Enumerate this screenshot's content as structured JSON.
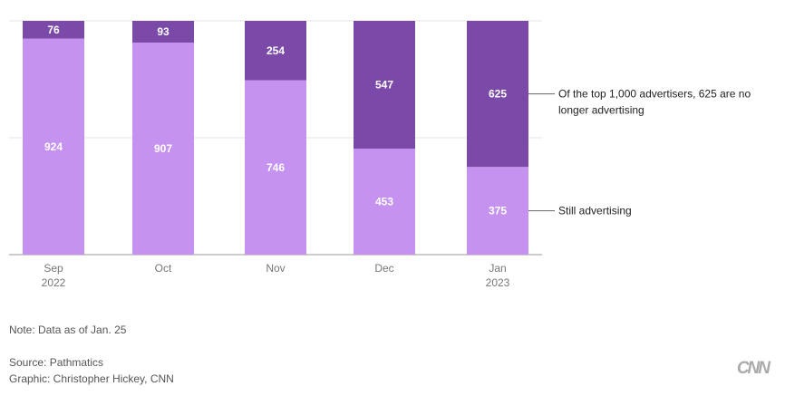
{
  "chart_data": {
    "type": "bar",
    "stacked": true,
    "categories": [
      "Sep\n2022",
      "Oct",
      "Nov",
      "Dec",
      "Jan\n2023"
    ],
    "series": [
      {
        "name": "Still advertising",
        "values": [
          924,
          907,
          746,
          453,
          375
        ],
        "color": "#c592f0"
      },
      {
        "name": "Of the top 1,000 advertisers, 625 are no longer advertising",
        "values": [
          76,
          93,
          254,
          547,
          625
        ],
        "color": "#7b4aa8"
      }
    ],
    "ylim": [
      0,
      1000
    ],
    "grid": true,
    "legend": "right, direct labels"
  },
  "footer": {
    "note": "Note: Data as of Jan. 25",
    "source": "Source: Pathmatics",
    "graphic": "Graphic: Christopher Hickey, CNN",
    "logo": "CNN"
  }
}
